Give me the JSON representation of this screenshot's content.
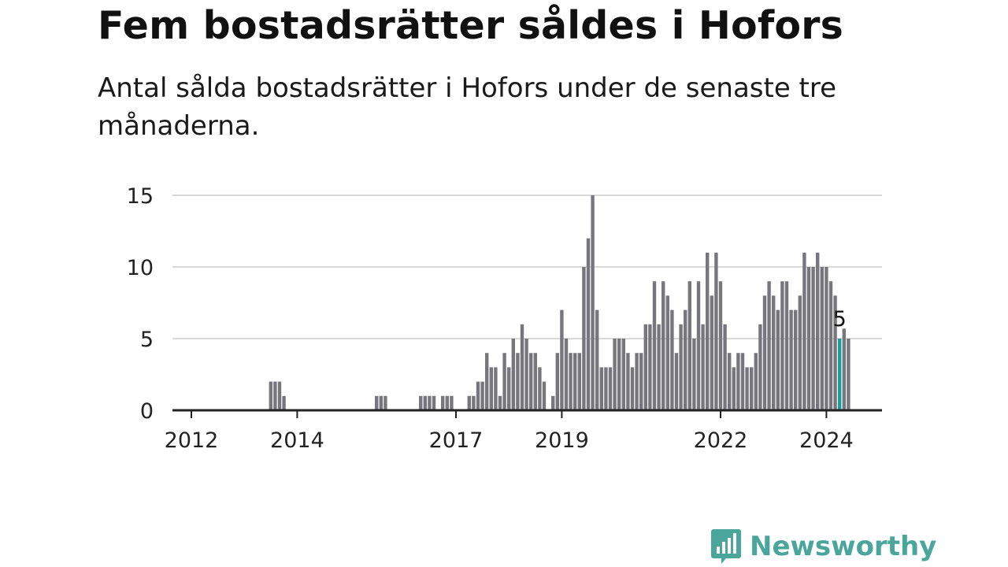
{
  "title": "Fem bostadsrätter såldes i Hofors",
  "subtitle": "Antal sålda bostadsrätter i Hofors under de senaste tre månaderna.",
  "brand": {
    "name": "Newsworthy",
    "icon": "bar-chart-speech-bubble-icon",
    "color": "#4aa59a"
  },
  "colors": {
    "bar": "#77767c",
    "highlight": "#1a9e9a",
    "grid": "#d9d9d9",
    "axis": "#222222"
  },
  "chart_data": {
    "type": "bar",
    "title": "Fem bostadsrätter såldes i Hofors",
    "subtitle": "Antal sålda bostadsrätter i Hofors under de senaste tre månaderna.",
    "xlabel": "",
    "ylabel": "",
    "x_start": "2011-10",
    "x_end": "2024-04",
    "interval": "monthly",
    "ylim": [
      0,
      15
    ],
    "yticks": [
      0,
      5,
      10,
      15
    ],
    "xticks": [
      "2012",
      "2014",
      "2017",
      "2019",
      "2022",
      "2024"
    ],
    "grid": true,
    "highlight": {
      "x": "2024-04",
      "value": 5,
      "label": "5"
    },
    "series": [
      {
        "values": [
          0,
          0,
          0,
          0,
          0,
          0,
          0,
          0,
          0,
          0,
          0,
          0,
          0,
          0,
          0,
          0,
          0,
          0,
          0,
          0,
          0,
          2,
          2,
          2,
          1,
          0,
          0,
          0,
          0,
          0,
          0,
          0,
          0,
          0,
          0,
          0,
          0,
          0,
          0,
          0,
          0,
          0,
          0,
          0,
          0,
          1,
          1,
          1,
          0,
          0,
          0,
          0,
          0,
          0,
          0,
          1,
          1,
          1,
          1,
          0,
          1,
          1,
          1,
          0,
          0,
          0,
          1,
          1,
          2,
          2,
          4,
          3,
          3,
          1,
          4,
          3,
          5,
          4,
          6,
          5,
          4,
          4,
          3,
          2,
          0,
          1,
          4,
          7,
          5,
          4,
          4,
          4,
          10,
          12,
          15,
          7,
          3,
          3,
          3,
          5,
          5,
          5,
          4,
          3,
          4,
          4,
          6,
          6,
          9,
          6,
          9,
          8,
          7,
          4,
          6,
          7,
          9,
          5,
          9,
          6,
          11,
          8,
          11,
          9,
          6,
          4,
          3,
          4,
          4,
          3,
          3,
          4,
          6,
          8,
          9,
          8,
          7,
          9,
          9,
          7,
          7,
          8,
          11,
          10,
          10,
          11,
          10,
          10,
          9,
          8,
          5,
          5.7,
          5
        ]
      }
    ]
  }
}
